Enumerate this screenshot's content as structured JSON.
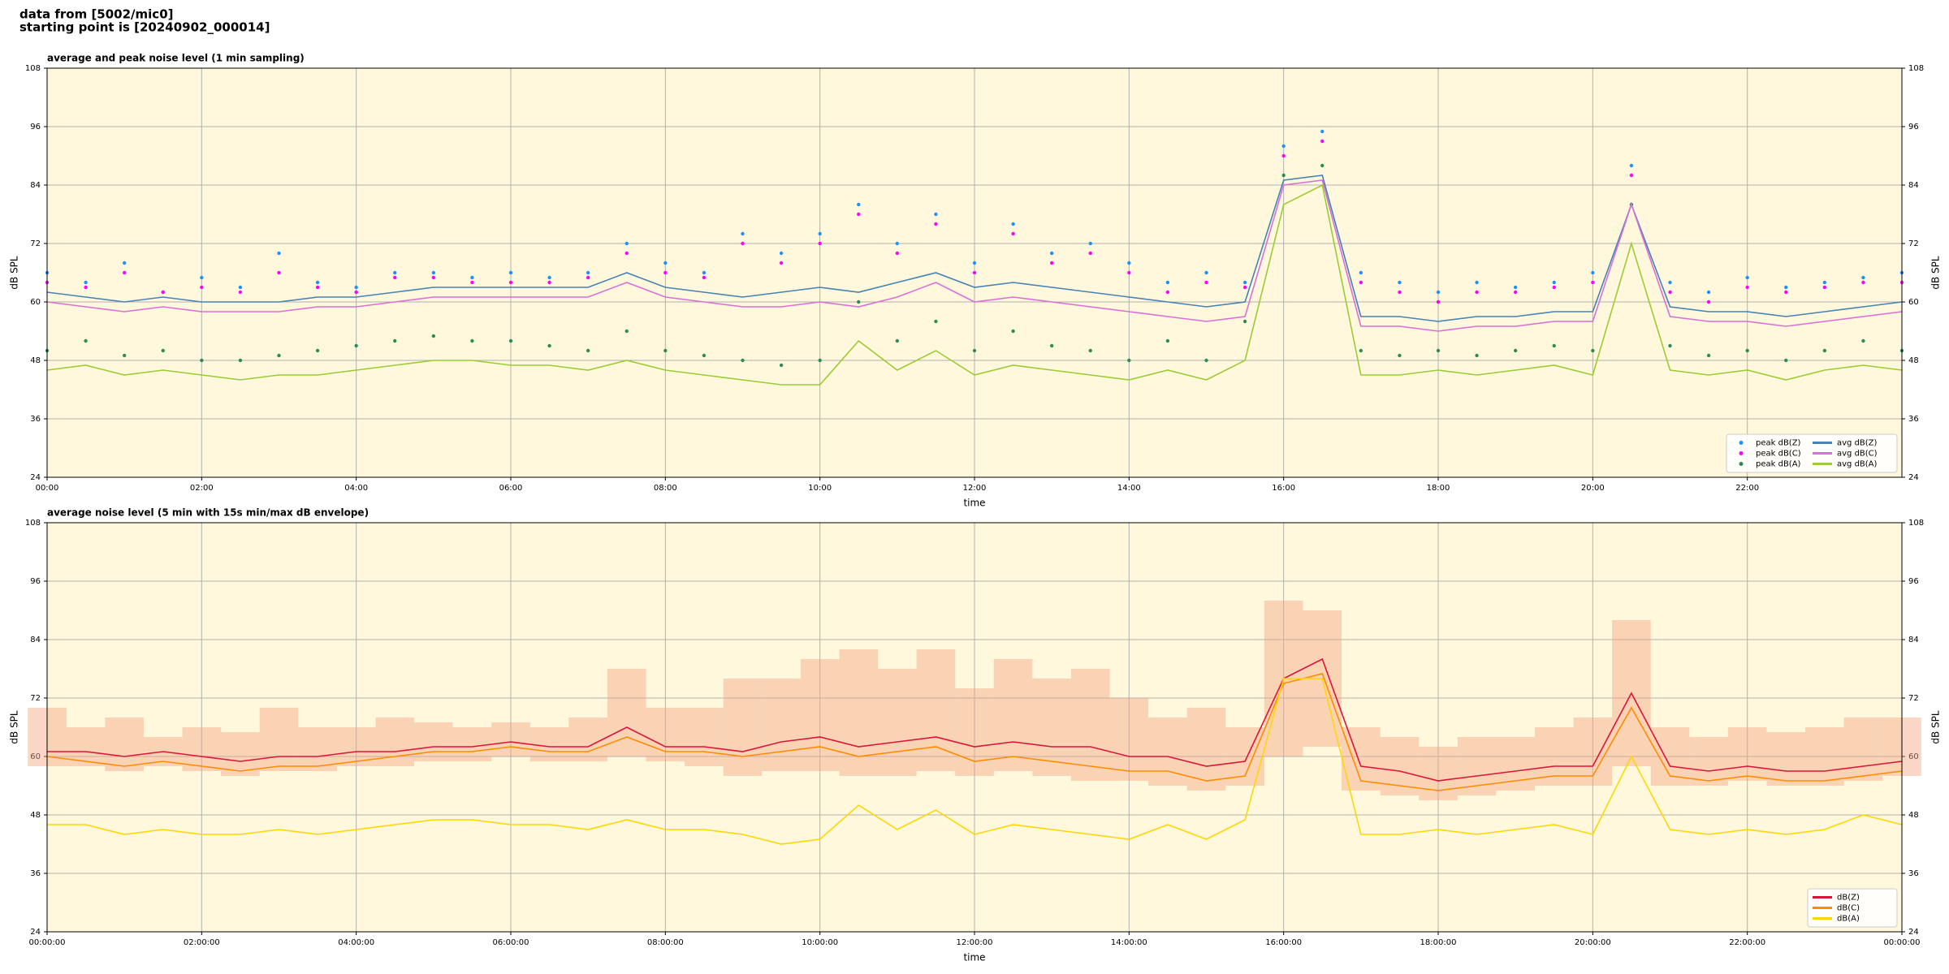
{
  "figure": {
    "title_lines": [
      "data from [5002/mic0]",
      "starting point is [20240902_000014]"
    ]
  },
  "chart_data": [
    {
      "type": "line",
      "title": "average and peak noise level (1 min sampling)",
      "x_label": "time",
      "y_label": "dB SPL",
      "background": "#fff8dc",
      "grid": true,
      "legend": "lower right",
      "legend_columns": 2,
      "xlim": [
        0,
        24
      ],
      "ylim": [
        24,
        108
      ],
      "xticks": [
        {
          "value": 0,
          "label": "00:00"
        },
        {
          "value": 2,
          "label": "02:00"
        },
        {
          "value": 4,
          "label": "04:00"
        },
        {
          "value": 6,
          "label": "06:00"
        },
        {
          "value": 8,
          "label": "08:00"
        },
        {
          "value": 10,
          "label": "10:00"
        },
        {
          "value": 12,
          "label": "12:00"
        },
        {
          "value": 14,
          "label": "14:00"
        },
        {
          "value": 16,
          "label": "16:00"
        },
        {
          "value": 18,
          "label": "18:00"
        },
        {
          "value": 20,
          "label": "20:00"
        },
        {
          "value": 22,
          "label": "22:00"
        }
      ],
      "yticks": [
        24,
        36,
        48,
        60,
        72,
        84,
        96,
        108
      ],
      "x": [
        0,
        0.5,
        1,
        1.5,
        2,
        2.5,
        3,
        3.5,
        4,
        4.5,
        5,
        5.5,
        6,
        6.5,
        7,
        7.5,
        8,
        8.5,
        9,
        9.5,
        10,
        10.5,
        11,
        11.5,
        12,
        12.5,
        13,
        13.5,
        14,
        14.5,
        15,
        15.5,
        16,
        16.5,
        17,
        17.5,
        18,
        18.5,
        19,
        19.5,
        20,
        20.5,
        21,
        21.5,
        22,
        22.5,
        23,
        23.5,
        24
      ],
      "series": [
        {
          "name": "peak dB(Z)",
          "type": "scatter",
          "color": "#1e90ff",
          "values": [
            66,
            64,
            68,
            62,
            65,
            63,
            70,
            64,
            63,
            66,
            66,
            65,
            66,
            65,
            66,
            72,
            68,
            66,
            74,
            70,
            74,
            80,
            72,
            78,
            68,
            76,
            70,
            72,
            68,
            64,
            66,
            64,
            92,
            95,
            66,
            64,
            62,
            64,
            63,
            64,
            66,
            88,
            64,
            62,
            65,
            63,
            64,
            65,
            66
          ]
        },
        {
          "name": "peak dB(C)",
          "type": "scatter",
          "color": "#ff00ff",
          "values": [
            64,
            63,
            66,
            62,
            63,
            62,
            66,
            63,
            62,
            65,
            65,
            64,
            64,
            64,
            65,
            70,
            66,
            65,
            72,
            68,
            72,
            78,
            70,
            76,
            66,
            74,
            68,
            70,
            66,
            62,
            64,
            63,
            90,
            93,
            64,
            62,
            60,
            62,
            62,
            63,
            64,
            86,
            62,
            60,
            63,
            62,
            63,
            64,
            64
          ]
        },
        {
          "name": "peak dB(A)",
          "type": "scatter",
          "color": "#2e8b57",
          "values": [
            50,
            52,
            49,
            50,
            48,
            48,
            49,
            50,
            51,
            52,
            53,
            52,
            52,
            51,
            50,
            54,
            50,
            49,
            48,
            47,
            48,
            60,
            52,
            56,
            50,
            54,
            51,
            50,
            48,
            52,
            48,
            56,
            86,
            88,
            50,
            49,
            50,
            49,
            50,
            51,
            50,
            80,
            51,
            49,
            50,
            48,
            50,
            52,
            50
          ]
        },
        {
          "name": "avg dB(Z)",
          "type": "line",
          "color": "#4682b4",
          "values": [
            62,
            61,
            60,
            61,
            60,
            60,
            60,
            61,
            61,
            62,
            63,
            63,
            63,
            63,
            63,
            66,
            63,
            62,
            61,
            62,
            63,
            62,
            64,
            66,
            63,
            64,
            63,
            62,
            61,
            60,
            59,
            60,
            85,
            86,
            57,
            57,
            56,
            57,
            57,
            58,
            58,
            80,
            59,
            58,
            58,
            57,
            58,
            59,
            60
          ]
        },
        {
          "name": "avg dB(C)",
          "type": "line",
          "color": "#da70d6",
          "values": [
            60,
            59,
            58,
            59,
            58,
            58,
            58,
            59,
            59,
            60,
            61,
            61,
            61,
            61,
            61,
            64,
            61,
            60,
            59,
            59,
            60,
            59,
            61,
            64,
            60,
            61,
            60,
            59,
            58,
            57,
            56,
            57,
            84,
            85,
            55,
            55,
            54,
            55,
            55,
            56,
            56,
            80,
            57,
            56,
            56,
            55,
            56,
            57,
            58
          ]
        },
        {
          "name": "avg dB(A)",
          "type": "line",
          "color": "#9acd32",
          "values": [
            46,
            47,
            45,
            46,
            45,
            44,
            45,
            45,
            46,
            47,
            48,
            48,
            47,
            47,
            46,
            48,
            46,
            45,
            44,
            43,
            43,
            52,
            46,
            50,
            45,
            47,
            46,
            45,
            44,
            46,
            44,
            48,
            80,
            84,
            45,
            45,
            46,
            45,
            46,
            47,
            45,
            72,
            46,
            45,
            46,
            44,
            46,
            47,
            46
          ]
        }
      ]
    },
    {
      "type": "line",
      "title": "average noise level (5 min with 15s min/max dB envelope)",
      "x_label": "time",
      "y_label": "dB SPL",
      "background": "#fff8dc",
      "grid": true,
      "legend": "lower right",
      "legend_columns": 1,
      "xlim": [
        0,
        24
      ],
      "ylim": [
        24,
        108
      ],
      "xticks": [
        {
          "value": 0,
          "label": "00:00:00"
        },
        {
          "value": 2,
          "label": "02:00:00"
        },
        {
          "value": 4,
          "label": "04:00:00"
        },
        {
          "value": 6,
          "label": "06:00:00"
        },
        {
          "value": 8,
          "label": "08:00:00"
        },
        {
          "value": 10,
          "label": "10:00:00"
        },
        {
          "value": 12,
          "label": "12:00:00"
        },
        {
          "value": 14,
          "label": "14:00:00"
        },
        {
          "value": 16,
          "label": "16:00:00"
        },
        {
          "value": 18,
          "label": "18:00:00"
        },
        {
          "value": 20,
          "label": "20:00:00"
        },
        {
          "value": 22,
          "label": "22:00:00"
        },
        {
          "value": 24,
          "label": "00:00:00"
        }
      ],
      "yticks": [
        24,
        36,
        48,
        60,
        72,
        84,
        96,
        108
      ],
      "x": [
        0,
        0.5,
        1,
        1.5,
        2,
        2.5,
        3,
        3.5,
        4,
        4.5,
        5,
        5.5,
        6,
        6.5,
        7,
        7.5,
        8,
        8.5,
        9,
        9.5,
        10,
        10.5,
        11,
        11.5,
        12,
        12.5,
        13,
        13.5,
        14,
        14.5,
        15,
        15.5,
        16,
        16.5,
        17,
        17.5,
        18,
        18.5,
        19,
        19.5,
        20,
        20.5,
        21,
        21.5,
        22,
        22.5,
        23,
        23.5,
        24
      ],
      "envelope": {
        "color": "#f4a582",
        "min": [
          58,
          58,
          57,
          58,
          57,
          56,
          57,
          57,
          58,
          58,
          59,
          59,
          60,
          59,
          59,
          60,
          59,
          58,
          56,
          57,
          57,
          56,
          56,
          57,
          56,
          57,
          56,
          55,
          55,
          54,
          53,
          54,
          60,
          62,
          53,
          52,
          51,
          52,
          53,
          54,
          54,
          58,
          54,
          54,
          55,
          54,
          54,
          55,
          56
        ],
        "max": [
          70,
          66,
          68,
          64,
          66,
          65,
          70,
          66,
          66,
          68,
          67,
          66,
          67,
          66,
          68,
          78,
          70,
          70,
          76,
          76,
          80,
          82,
          78,
          82,
          74,
          80,
          76,
          78,
          72,
          68,
          70,
          66,
          92,
          90,
          66,
          64,
          62,
          64,
          64,
          66,
          68,
          88,
          66,
          64,
          66,
          65,
          66,
          68,
          68
        ]
      },
      "series": [
        {
          "name": "dB(Z)",
          "type": "line",
          "color": "#dc143c",
          "values": [
            61,
            61,
            60,
            61,
            60,
            59,
            60,
            60,
            61,
            61,
            62,
            62,
            63,
            62,
            62,
            66,
            62,
            62,
            61,
            63,
            64,
            62,
            63,
            64,
            62,
            63,
            62,
            62,
            60,
            60,
            58,
            59,
            76,
            80,
            58,
            57,
            55,
            56,
            57,
            58,
            58,
            73,
            58,
            57,
            58,
            57,
            57,
            58,
            59
          ]
        },
        {
          "name": "dB(C)",
          "type": "line",
          "color": "#ff8c00",
          "values": [
            60,
            59,
            58,
            59,
            58,
            57,
            58,
            58,
            59,
            60,
            61,
            61,
            62,
            61,
            61,
            64,
            61,
            61,
            60,
            61,
            62,
            60,
            61,
            62,
            59,
            60,
            59,
            58,
            57,
            57,
            55,
            56,
            75,
            77,
            55,
            54,
            53,
            54,
            55,
            56,
            56,
            70,
            56,
            55,
            56,
            55,
            55,
            56,
            57
          ]
        },
        {
          "name": "dB(A)",
          "type": "line",
          "color": "#ffd700",
          "values": [
            46,
            46,
            44,
            45,
            44,
            44,
            45,
            44,
            45,
            46,
            47,
            47,
            46,
            46,
            45,
            47,
            45,
            45,
            44,
            42,
            43,
            50,
            45,
            49,
            44,
            46,
            45,
            44,
            43,
            46,
            43,
            47,
            76,
            76,
            44,
            44,
            45,
            44,
            45,
            46,
            44,
            60,
            45,
            44,
            45,
            44,
            45,
            48,
            46
          ]
        }
      ]
    }
  ]
}
